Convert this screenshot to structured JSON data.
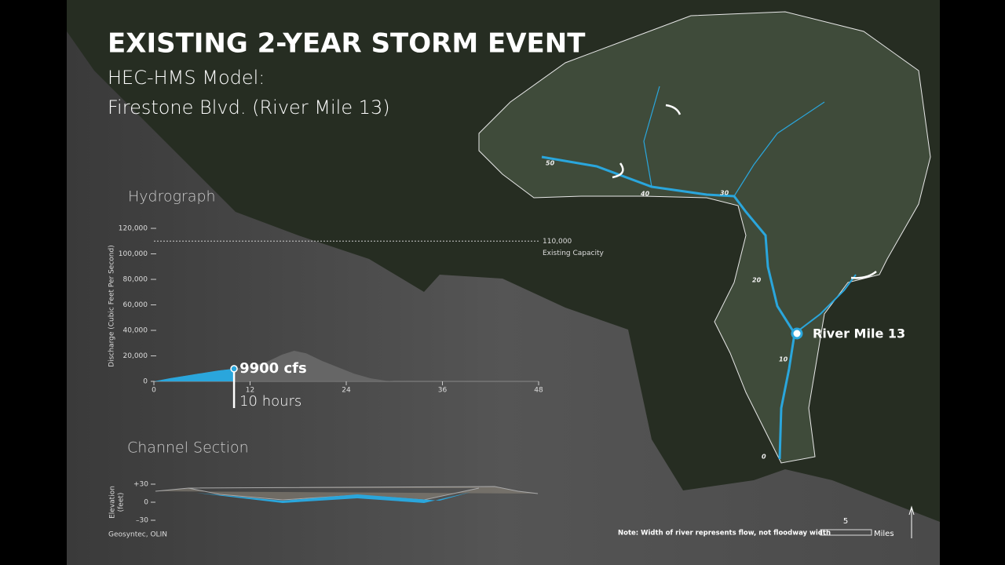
{
  "title": "EXISTING 2-YEAR STORM EVENT",
  "subtitle": [
    "HEC-HMS Model:",
    "Firestone Blvd.  (River Mile 13)"
  ],
  "chart_data": [
    {
      "type": "area",
      "title": "Hydrograph",
      "y_label": "Discharge (Cubic Feet Per Second)",
      "x": [
        0,
        2,
        4,
        6,
        8,
        10,
        12,
        14,
        16,
        17.5,
        19,
        21,
        23,
        25,
        27,
        29,
        30
      ],
      "series": [
        {
          "color": "#6b6b6b",
          "values": [
            0,
            2500,
            4500,
            6500,
            8500,
            9900,
            11500,
            15000,
            21000,
            24000,
            22000,
            16000,
            11000,
            6000,
            2500,
            500,
            0
          ]
        },
        {
          "color": "#2aa6dc",
          "values": [
            0,
            2500,
            4500,
            6500,
            8500,
            9900,
            null,
            null,
            null,
            null,
            null,
            null,
            null,
            null,
            null,
            null,
            null
          ]
        }
      ],
      "xlim": [
        0,
        48
      ],
      "xticks": [
        0,
        12,
        24,
        36,
        48
      ],
      "ylim": [
        0,
        120000
      ],
      "yticks": [
        0,
        {
          "value": 20000,
          "label": "20,000"
        },
        {
          "value": 40000,
          "label": "40,000"
        },
        {
          "value": 60000,
          "label": "60,000"
        },
        {
          "value": 80000,
          "label": "80,000"
        },
        {
          "value": 100000,
          "label": "100,000"
        },
        {
          "value": 120000,
          "label": "120,000"
        }
      ],
      "reference_line": {
        "value": 110000,
        "label": "110,000",
        "text": "Existing Capacity"
      },
      "marker": {
        "x": 10,
        "value": 9900,
        "value_label": "9900 cfs",
        "x_label": "10 hours"
      }
    },
    {
      "type": "section",
      "title": "Channel Section",
      "y_label": [
        "Elevation",
        "(feet)"
      ],
      "ylim": [
        -30,
        30
      ],
      "yticks": [
        {
          "value": 30,
          "label": "+30"
        },
        0,
        {
          "value": -30,
          "label": "–30"
        }
      ]
    }
  ],
  "source": "Geosyntec, OLIN",
  "map": {
    "location_label": "River Mile 13",
    "mile_labels": [
      "50",
      "40",
      "30",
      "20",
      "10",
      "0"
    ],
    "note": "Note: Width of river represents flow, not floodway width",
    "scale_value": "5",
    "scale_unit": "Miles"
  }
}
